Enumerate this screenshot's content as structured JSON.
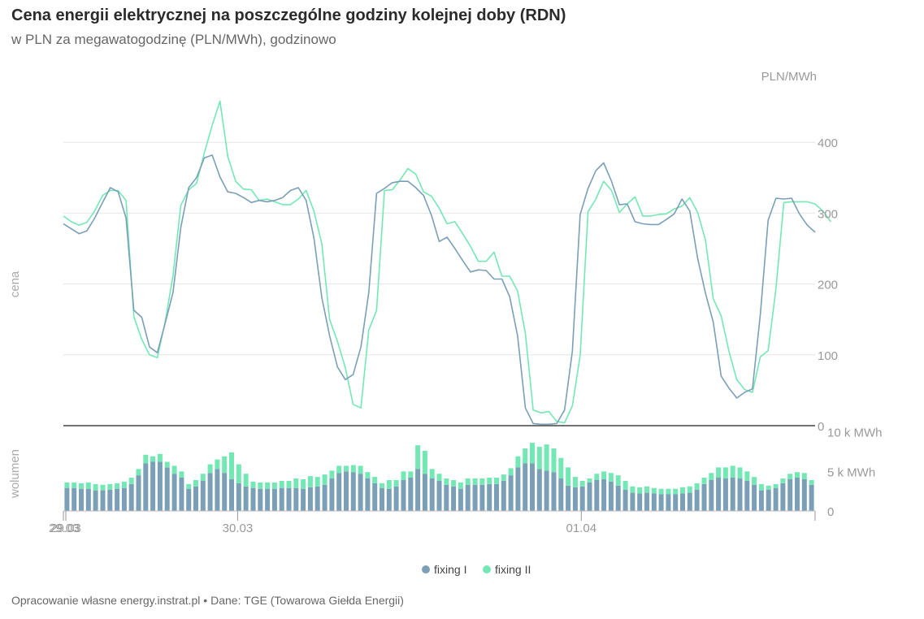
{
  "title": "Cena energii elektrycznej na poszczególne godziny kolejnej doby (RDN)",
  "subtitle": "w PLN za megawatogodzinę (PLN/MWh), godzinowo",
  "footer": "Opracowanie własne energy.instrat.pl • Dane: TGE (Towarowa Giełda Energii)",
  "colors": {
    "fixing1": "#7a9fb6",
    "fixing2": "#74e8b4"
  },
  "chart_data": [
    {
      "type": "line",
      "title": "",
      "ylabel": "cena",
      "yunit": "PLN/MWh",
      "ylim": [
        0,
        430
      ],
      "yticks": [
        0,
        100,
        200,
        300,
        400
      ],
      "x_start_label": "29.03",
      "xticks": [
        "29.03",
        "30.03",
        "01.04"
      ],
      "grid": true,
      "series": [
        {
          "name": "fixing I",
          "values": [
            285,
            278,
            271,
            275,
            293,
            315,
            336,
            330,
            293,
            163,
            153,
            111,
            103,
            145,
            188,
            280,
            336,
            350,
            378,
            382,
            351,
            330,
            328,
            322,
            315,
            318,
            316,
            318,
            322,
            332,
            336,
            318,
            265,
            181,
            127,
            83,
            65,
            72,
            111,
            188,
            328,
            335,
            343,
            345,
            345,
            336,
            325,
            297,
            260,
            266,
            250,
            233,
            217,
            220,
            219,
            207,
            207,
            182,
            127,
            25,
            3,
            2,
            2,
            3,
            22,
            105,
            298,
            335,
            360,
            371,
            345,
            312,
            313,
            288,
            285,
            284,
            284,
            291,
            299,
            320,
            303,
            236,
            187,
            146,
            70,
            53,
            39,
            47,
            52,
            157,
            290,
            321,
            320,
            321,
            299,
            283,
            273
          ]
        },
        {
          "name": "fixing II",
          "values": [
            296,
            288,
            283,
            287,
            303,
            325,
            332,
            332,
            318,
            154,
            122,
            100,
            96,
            147,
            212,
            311,
            333,
            342,
            385,
            424,
            458,
            380,
            345,
            334,
            333,
            318,
            320,
            316,
            312,
            312,
            320,
            332,
            303,
            257,
            150,
            119,
            82,
            30,
            25,
            135,
            163,
            332,
            333,
            347,
            363,
            355,
            330,
            324,
            307,
            285,
            288,
            271,
            253,
            232,
            232,
            245,
            211,
            211,
            190,
            130,
            22,
            18,
            20,
            6,
            4,
            28,
            99,
            302,
            320,
            345,
            332,
            301,
            313,
            323,
            296,
            296,
            298,
            299,
            306,
            310,
            322,
            301,
            262,
            179,
            155,
            105,
            65,
            51,
            47,
            97,
            106,
            193,
            315,
            316,
            316,
            316,
            313,
            303,
            288
          ]
        }
      ]
    },
    {
      "type": "bar",
      "title": "",
      "ylabel": "wolumen",
      "ylim": [
        0,
        10000
      ],
      "yticks": [
        "0",
        "5 k MWh",
        "10 k MWh"
      ],
      "series": [
        {
          "name": "fixing I",
          "values": [
            2900,
            2900,
            2800,
            2800,
            2600,
            2600,
            2700,
            2800,
            2900,
            3400,
            4500,
            6000,
            6200,
            6200,
            5500,
            4700,
            4200,
            2800,
            3100,
            3800,
            4800,
            5300,
            4800,
            4000,
            3500,
            3100,
            2900,
            2800,
            2800,
            2800,
            2900,
            2900,
            2900,
            2800,
            3000,
            3100,
            3300,
            4100,
            4800,
            5000,
            4900,
            4700,
            4100,
            3500,
            2900,
            2800,
            3100,
            3900,
            4200,
            5300,
            4700,
            4100,
            3800,
            3300,
            3100,
            2800,
            3300,
            3300,
            3300,
            3400,
            3400,
            3800,
            4500,
            5500,
            6000,
            6000,
            5300,
            5100,
            4900,
            4100,
            3200,
            3000,
            3100,
            3600,
            3900,
            4000,
            3700,
            3200,
            2700,
            2300,
            2200,
            2300,
            2200,
            2100,
            2100,
            2100,
            2200,
            2300,
            2700,
            3400,
            3900,
            4200,
            4100,
            4200,
            4100,
            3800,
            3300,
            2600,
            2700,
            2900,
            3500,
            4000,
            4200,
            4000,
            3300
          ]
        },
        {
          "name": "fixing II",
          "values": [
            700,
            700,
            700,
            800,
            800,
            700,
            700,
            700,
            800,
            800,
            800,
            1100,
            700,
            1000,
            700,
            1000,
            800,
            600,
            800,
            900,
            1100,
            1200,
            2100,
            3400,
            2400,
            1600,
            800,
            800,
            800,
            800,
            900,
            900,
            1200,
            1200,
            1400,
            1200,
            1300,
            1000,
            900,
            700,
            900,
            1000,
            800,
            800,
            600,
            1100,
            800,
            1100,
            800,
            3000,
            2900,
            1200,
            900,
            800,
            800,
            800,
            800,
            800,
            800,
            800,
            800,
            800,
            900,
            1400,
            1900,
            2600,
            2800,
            3300,
            3000,
            2600,
            2300,
            1300,
            700,
            500,
            800,
            1000,
            1100,
            1300,
            1100,
            800,
            800,
            800,
            700,
            700,
            700,
            700,
            800,
            800,
            800,
            800,
            900,
            1300,
            1400,
            1500,
            1400,
            1200,
            1000,
            800,
            500,
            500,
            600,
            700,
            700,
            800,
            600
          ]
        }
      ]
    }
  ],
  "legend": [
    {
      "label": "fixing I",
      "color": "#7a9fb6"
    },
    {
      "label": "fixing II",
      "color": "#74e8b4"
    }
  ]
}
